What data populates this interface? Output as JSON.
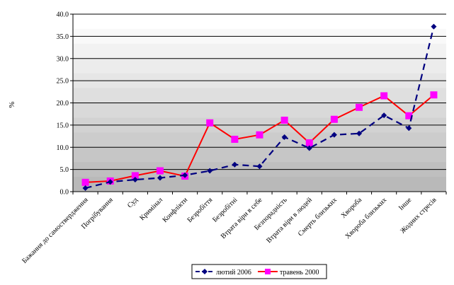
{
  "chart_data": {
    "type": "line",
    "title": "",
    "xlabel": "",
    "ylabel": "%",
    "ylim": [
      0,
      40
    ],
    "yticks": [
      "0.0",
      "5.0",
      "10.0",
      "15.0",
      "20.0",
      "25.0",
      "30.0",
      "35.0",
      "40.0"
    ],
    "grid": true,
    "legend_position": "bottom",
    "categories": [
      "Бажання до самоствердження",
      "Погрібування",
      "Суд",
      "Кримінал",
      "Конфлікти",
      "Безробіття",
      "Безробітні",
      "Втрата віри в себе",
      "Безпорадність",
      "Втрата віри в людей",
      "Смерть близьких",
      "Хвороба",
      "Хвороба близьких",
      "Інше",
      "Жодних стресів"
    ],
    "series": [
      {
        "name": "лютий 2006",
        "color": "#000080",
        "values": [
          0.8,
          2.2,
          2.7,
          3.1,
          3.7,
          4.7,
          6.1,
          5.7,
          12.3,
          9.8,
          12.8,
          13.1,
          17.2,
          14.3,
          37.2
        ]
      },
      {
        "name": "травень 2000",
        "color": "#ff00ff",
        "line_color": "#ff0000",
        "values": [
          2.1,
          2.4,
          3.6,
          4.7,
          3.5,
          15.5,
          11.8,
          12.8,
          16.1,
          11.0,
          16.3,
          19.0,
          21.6,
          17.1,
          21.8
        ]
      }
    ]
  }
}
